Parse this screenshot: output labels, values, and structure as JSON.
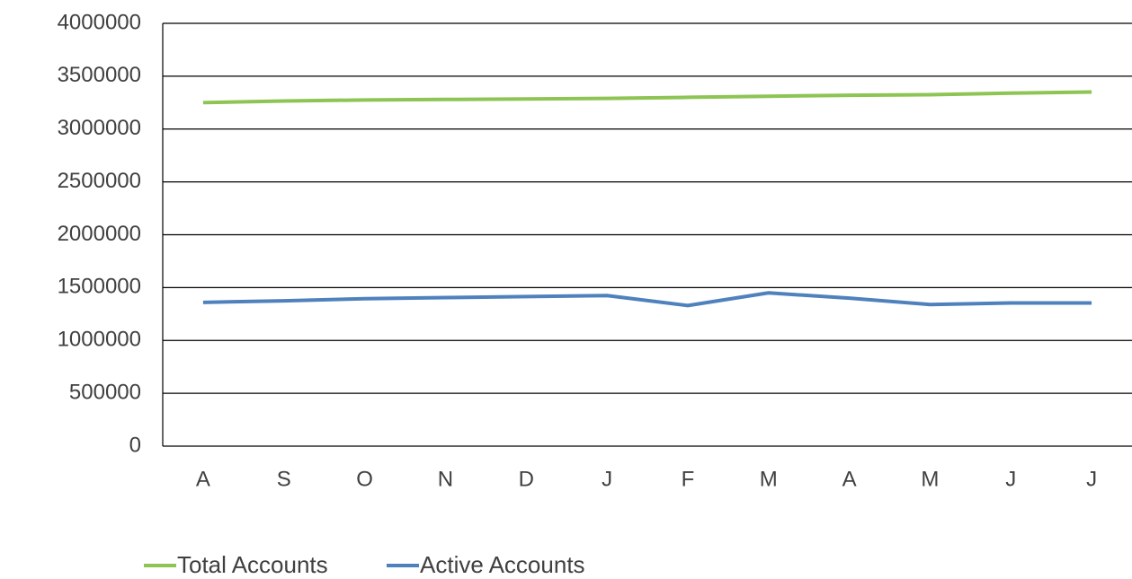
{
  "chart_data": {
    "type": "line",
    "categories": [
      "A",
      "S",
      "O",
      "N",
      "D",
      "J",
      "F",
      "M",
      "A",
      "M",
      "J",
      "J"
    ],
    "series": [
      {
        "name": "Total Accounts",
        "color": "#8dc453",
        "values": [
          3250000,
          3265000,
          3275000,
          3280000,
          3285000,
          3290000,
          3300000,
          3310000,
          3320000,
          3325000,
          3340000,
          3350000
        ]
      },
      {
        "name": "Active Accounts",
        "color": "#4f81bd",
        "values": [
          1360000,
          1375000,
          1395000,
          1405000,
          1415000,
          1425000,
          1330000,
          1450000,
          1400000,
          1340000,
          1355000,
          1355000
        ]
      }
    ],
    "ylim": [
      0,
      4000000
    ],
    "yticks": [
      0,
      500000,
      1000000,
      1500000,
      2000000,
      2500000,
      3000000,
      3500000,
      4000000
    ],
    "grid": true,
    "legend": "bottom"
  }
}
